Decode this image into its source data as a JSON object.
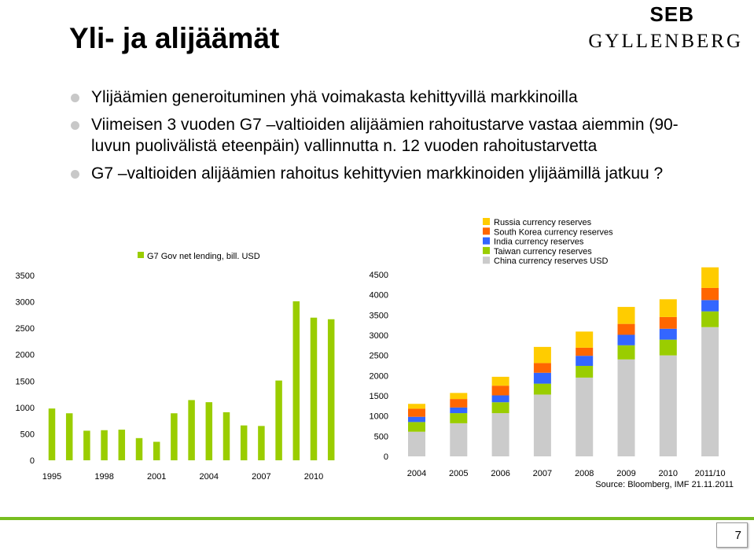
{
  "title": "Yli- ja alijäämät",
  "logo": {
    "brand": "SEB",
    "name": "GYLLENBERG"
  },
  "bullets": [
    "Ylijäämien generoituminen yhä voimakasta kehittyvillä markkinoilla",
    "Viimeisen 3 vuoden G7 –valtioiden alijäämien rahoitustarve vastaa aiemmin (90-luvun puolivälistä eteenpäin) vallinnutta n. 12 vuoden rahoitustarvetta",
    "G7 –valtioiden alijäämien rahoitus kehittyvien markkinoiden ylijäämillä jatkuu ?"
  ],
  "page_number": "7",
  "colors": {
    "green": "#9acd00",
    "gray": "#cbcbcb",
    "orange": "#ff6600",
    "blue": "#3366ff",
    "yellow": "#ffcc00",
    "rule": "#78be20"
  },
  "chart_data": [
    {
      "type": "bar",
      "legend": "G7 Gov net lending, bill. USD",
      "legend_position": "top",
      "x": [
        1995,
        1996,
        1997,
        1998,
        1999,
        2000,
        2001,
        2002,
        2003,
        2004,
        2005,
        2006,
        2007,
        2008,
        2009,
        2010,
        2011
      ],
      "x_tick_labels": [
        "1995",
        "1998",
        "2001",
        "2004",
        "2007",
        "2010"
      ],
      "values": [
        980,
        890,
        560,
        570,
        580,
        420,
        350,
        890,
        1140,
        1100,
        910,
        660,
        650,
        1510,
        3010,
        2700,
        2670
      ],
      "ylim": [
        0,
        3500
      ],
      "y_tick_labels": [
        "0",
        "500",
        "1000",
        "1500",
        "2000",
        "2500",
        "3000",
        "3500"
      ],
      "grid": false,
      "color": "#9acd00"
    },
    {
      "type": "bar",
      "stacked": true,
      "categories": [
        "2004",
        "2005",
        "2006",
        "2007",
        "2008",
        "2009",
        "2010",
        "2011/10"
      ],
      "ylim": [
        0,
        4500
      ],
      "y_tick_labels": [
        "0",
        "500",
        "1000",
        "1500",
        "2000",
        "2500",
        "3000",
        "3500",
        "4000",
        "4500"
      ],
      "legend_position": "top-right",
      "series": [
        {
          "name": "China currency reserves USD",
          "color": "#cbcbcb",
          "values": [
            610,
            820,
            1070,
            1530,
            1950,
            2400,
            2500,
            3200
          ]
        },
        {
          "name": "Taiwan currency reserves",
          "color": "#9acd00",
          "values": [
            240,
            250,
            270,
            270,
            290,
            350,
            390,
            390
          ]
        },
        {
          "name": "India currency reserves",
          "color": "#3366ff",
          "values": [
            130,
            140,
            170,
            270,
            250,
            260,
            270,
            280
          ]
        },
        {
          "name": "South Korea currency reserves",
          "color": "#ff6600",
          "values": [
            200,
            210,
            240,
            240,
            200,
            270,
            290,
            300
          ]
        },
        {
          "name": "Russia currency reserves",
          "color": "#ffcc00",
          "values": [
            120,
            150,
            220,
            400,
            400,
            420,
            440,
            510
          ]
        }
      ],
      "grid": false
    }
  ],
  "source": "Source: Bloomberg, IMF 21.11.2011"
}
